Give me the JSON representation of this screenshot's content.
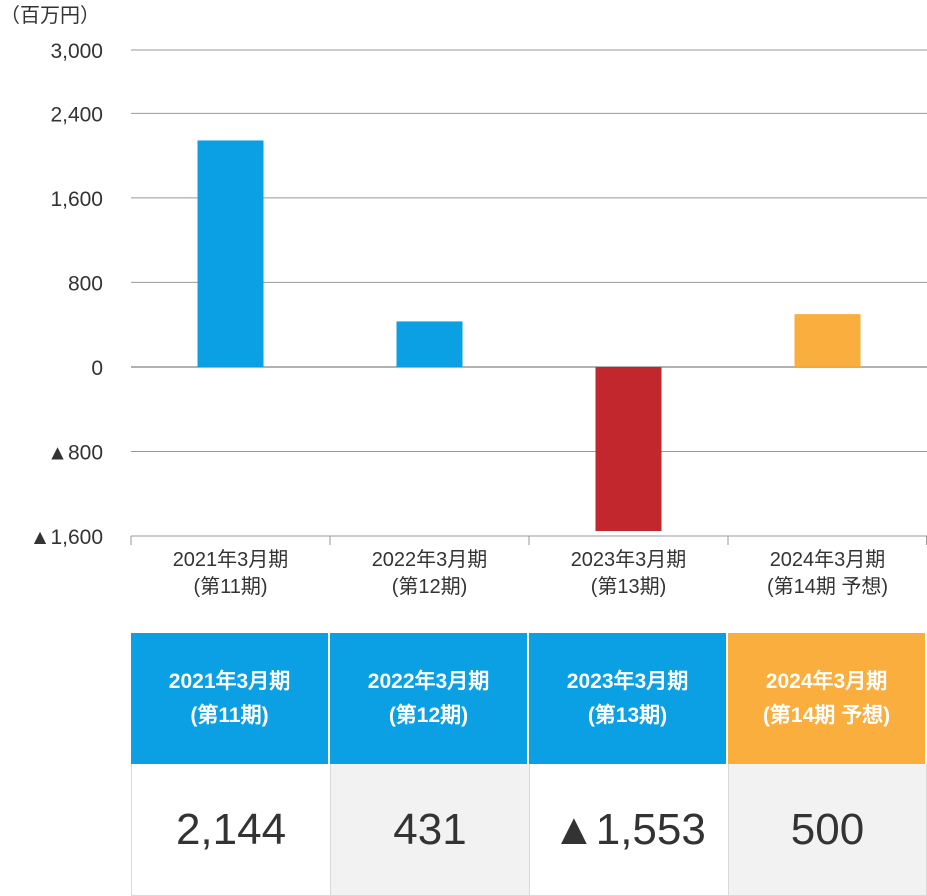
{
  "chart_data": {
    "type": "bar",
    "unit_label": "（百万円）",
    "categories": [
      [
        "2021年3月期",
        "(第11期)"
      ],
      [
        "2022年3月期",
        "(第12期)"
      ],
      [
        "2023年3月期",
        "(第13期)"
      ],
      [
        "2024年3月期",
        "(第14期 予想)"
      ]
    ],
    "values": [
      2144,
      431,
      -1553,
      500
    ],
    "bar_colors": [
      "#0b9fe3",
      "#0b9fe3",
      "#c1272d",
      "#f9ae3d"
    ],
    "ylim": [
      -1600,
      3000
    ],
    "y_ticks": [
      {
        "value": 3000,
        "label": "3,000"
      },
      {
        "value": 2400,
        "label": "2,400"
      },
      {
        "value": 1600,
        "label": "1,600"
      },
      {
        "value": 800,
        "label": "800"
      },
      {
        "value": 0,
        "label": "0"
      },
      {
        "value": -800,
        "label": "▲800"
      },
      {
        "value": -1600,
        "label": "▲1,600"
      }
    ],
    "grid": true,
    "legend": "none"
  },
  "table": {
    "headers": [
      {
        "line1": "2021年3月期",
        "line2": "(第11期)",
        "color": "#0b9fe3"
      },
      {
        "line1": "2022年3月期",
        "line2": "(第12期)",
        "color": "#0b9fe3"
      },
      {
        "line1": "2023年3月期",
        "line2": "(第13期)",
        "color": "#0b9fe3"
      },
      {
        "line1": "2024年3月期",
        "line2": "(第14期 予想)",
        "color": "#f9ae3d"
      }
    ],
    "values": [
      {
        "text": "2,144",
        "bg": "#ffffff"
      },
      {
        "text": "431",
        "bg": "#f2f2f2"
      },
      {
        "text": "▲1,553",
        "bg": "#ffffff"
      },
      {
        "text": "500",
        "bg": "#f2f2f2"
      }
    ]
  }
}
